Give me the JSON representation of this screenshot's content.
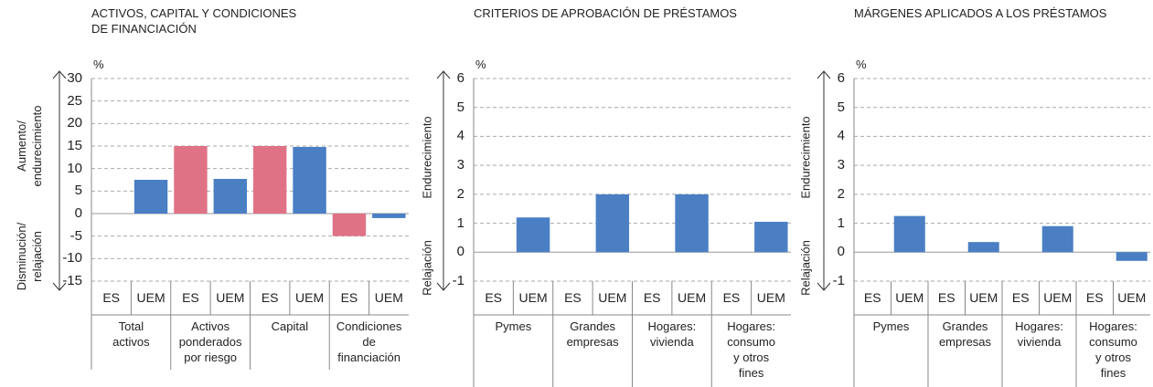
{
  "chart_data": [
    {
      "type": "bar",
      "title": "ACTIVOS, CAPITAL Y CONDICIONES\nDE FINANCIACIÓN",
      "unit": "%",
      "up_label": "Aumento/\nendurecimiento",
      "down_label": "Disminución/\nrelajación",
      "categories": [
        "Total\nactivos",
        "Activos\nponderados\npor riesgo",
        "Capital",
        "Condiciones\nde\nfinanciación"
      ],
      "series": [
        {
          "name": "ES",
          "color": "#e07286",
          "values": [
            0,
            15,
            15,
            -5
          ]
        },
        {
          "name": "UEM",
          "color": "#4a7fc4",
          "values": [
            7.5,
            7.7,
            14.8,
            -1
          ]
        }
      ],
      "ylim": [
        -15,
        30
      ],
      "yticks": [
        -15,
        -10,
        -5,
        0,
        5,
        10,
        15,
        20,
        25,
        30
      ],
      "grid": true
    },
    {
      "type": "bar",
      "title": "CRITERIOS DE APROBACIÓN DE PRÉSTAMOS",
      "unit": "%",
      "up_label": "Endurecimiento",
      "down_label": "Relajación",
      "categories": [
        "Pymes",
        "Grandes\nempresas",
        "Hogares:\nvivienda",
        "Hogares:\nconsumo\ny otros\nfines"
      ],
      "series": [
        {
          "name": "ES",
          "color": "#e07286",
          "values": [
            0,
            0,
            0,
            0
          ]
        },
        {
          "name": "UEM",
          "color": "#4a7fc4",
          "values": [
            1.2,
            2.0,
            2.0,
            1.05
          ]
        }
      ],
      "ylim": [
        -1,
        6
      ],
      "yticks": [
        -1,
        0,
        1,
        2,
        3,
        4,
        5,
        6
      ],
      "grid": true
    },
    {
      "type": "bar",
      "title": "MÁRGENES APLICADOS A LOS PRÉSTAMOS",
      "unit": "%",
      "up_label": "Endurecimiento",
      "down_label": "Relajación",
      "categories": [
        "Pymes",
        "Grandes\nempresas",
        "Hogares:\nvivienda",
        "Hogares:\nconsumo\ny otros\nfines"
      ],
      "series": [
        {
          "name": "ES",
          "color": "#e07286",
          "values": [
            0,
            0,
            0,
            0
          ]
        },
        {
          "name": "UEM",
          "color": "#4a7fc4",
          "values": [
            1.25,
            0.35,
            0.9,
            -0.3
          ]
        }
      ],
      "ylim": [
        -1,
        6
      ],
      "yticks": [
        -1,
        0,
        1,
        2,
        3,
        4,
        5,
        6
      ],
      "grid": true
    }
  ]
}
